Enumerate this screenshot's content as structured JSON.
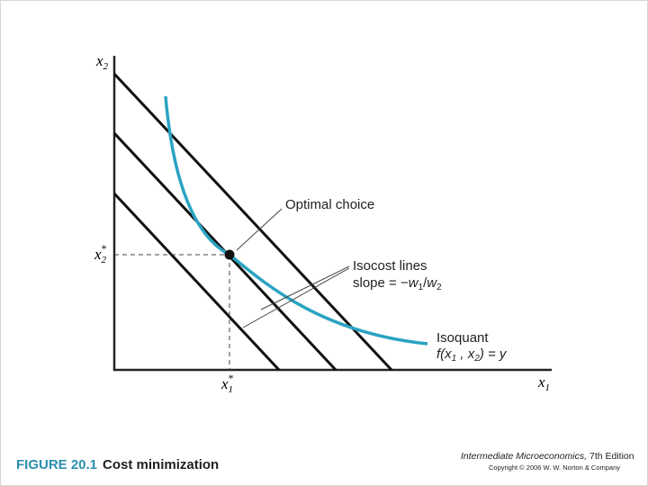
{
  "axes": {
    "y_label": {
      "base": "x",
      "sub": "2"
    },
    "x_label": {
      "base": "x",
      "sub": "1"
    }
  },
  "optimum": {
    "x2_star": {
      "base": "x",
      "sub": "2",
      "sup": "*"
    },
    "x1_star": {
      "base": "x",
      "sub": "1",
      "sup": "*"
    }
  },
  "annotations": {
    "optimal_choice": "Optimal choice",
    "isocost": {
      "title": "Isocost lines",
      "slope_prefix": "slope = −",
      "w": "w",
      "sub1": "1",
      "slash": "/",
      "w2": "w",
      "sub2": "2"
    },
    "isoquant": {
      "title": "Isoquant",
      "f_open": "f(x",
      "sub1": "1",
      "comma": " , x",
      "sub2": "2",
      "close": ") = y"
    }
  },
  "caption": {
    "figure": "FIGURE 20.1",
    "title": "Cost minimization"
  },
  "publisher": {
    "book": "Intermediate Microeconomics,",
    "edition": " 7th Edition",
    "copyright": "Copyright © 2006 W. W. Norton & Company"
  }
}
